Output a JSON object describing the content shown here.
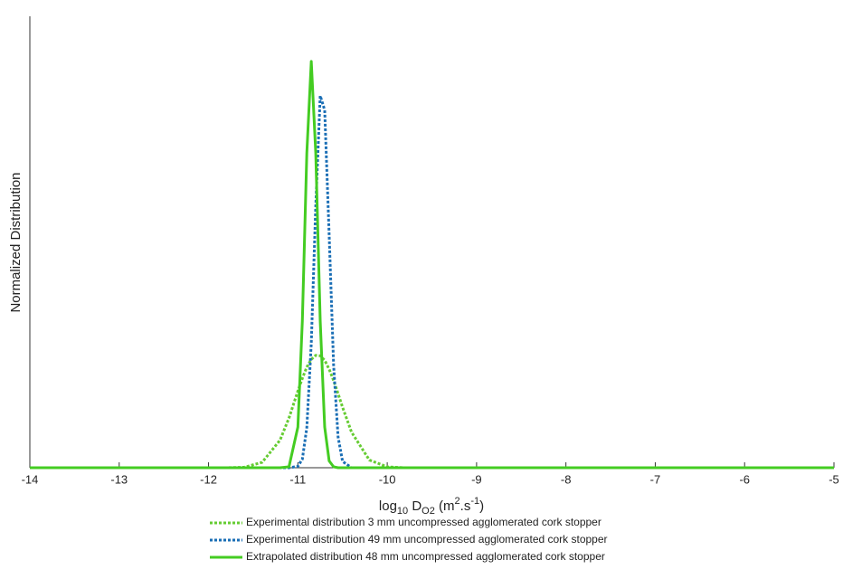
{
  "chart_data": {
    "type": "line",
    "xlabel": [
      "log",
      "10",
      " D",
      "O2",
      " (m",
      "2",
      ".s",
      "-1",
      ")"
    ],
    "ylabel": "Normalized Distribution",
    "x": [
      -14,
      -11.8,
      -11.6,
      -11.4,
      -11.2,
      -11.1,
      -11.0,
      -10.95,
      -10.9,
      -10.85,
      -10.8,
      -10.75,
      -10.7,
      -10.65,
      -10.6,
      -10.55,
      -10.5,
      -10.4,
      -10.2,
      -10.0,
      -9.8,
      -5
    ],
    "series": [
      {
        "name": "Experimental distribution 3 mm uncompressed agglomerated cork stopper",
        "color": "#66cc33",
        "style": "dotted",
        "values": [
          0,
          0,
          0.001,
          0.012,
          0.061,
          0.11,
          0.17,
          0.198,
          0.223,
          0.24,
          0.249,
          0.248,
          0.238,
          0.218,
          0.193,
          0.164,
          0.134,
          0.079,
          0.017,
          0.002,
          0,
          0
        ]
      },
      {
        "name": "Experimental distribution 49 mm uncompressed agglomerated cork stopper",
        "color": "#1a6eb5",
        "style": "dotted",
        "values": [
          0,
          0,
          0,
          0,
          0,
          0,
          0.003,
          0.019,
          0.089,
          0.276,
          0.58,
          0.824,
          0.792,
          0.516,
          0.227,
          0.068,
          0.014,
          0,
          0,
          0,
          0,
          0
        ]
      },
      {
        "name": "Extrapolated distribution 48 mm uncompressed agglomerated cork stopper",
        "color": "#44cc22",
        "style": "solid",
        "values": [
          0,
          0,
          0,
          0,
          0,
          0.002,
          0.09,
          0.325,
          0.697,
          0.9,
          0.697,
          0.325,
          0.09,
          0.015,
          0.002,
          0,
          0,
          0,
          0,
          0,
          0,
          0
        ]
      }
    ],
    "xlim": [
      -14,
      -5
    ],
    "xticks": [
      -14,
      -13,
      -12,
      -11,
      -10,
      -9,
      -8,
      -7,
      -6,
      -5
    ],
    "ylim": [
      0,
      1
    ],
    "legend": "bottom"
  }
}
